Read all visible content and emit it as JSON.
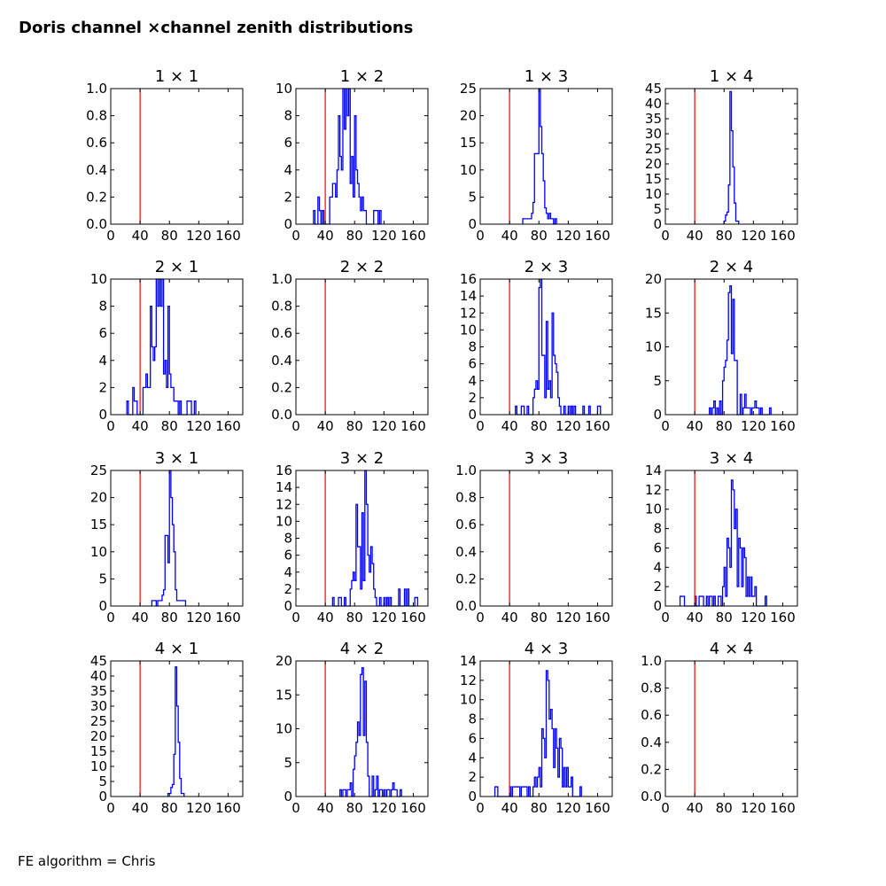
{
  "title": "Doris channel ×channel zenith distributions",
  "footer": "FE algorithm = Chris",
  "colors": {
    "hist": "#0000ff",
    "marker": "#ff0000",
    "axes": "#000000"
  },
  "chart_data": {
    "type": "histogram-grid",
    "xlim": [
      0,
      180
    ],
    "xticks": [
      0,
      40,
      80,
      120,
      160
    ],
    "marker_line_x": 40,
    "bin_width": 2,
    "panels": [
      {
        "title": "1 × 1",
        "ylim": [
          0,
          1
        ],
        "yticks": [
          "0.0",
          "0.2",
          "0.4",
          "0.6",
          "0.8",
          "1.0"
        ],
        "bins": null
      },
      {
        "title": "1 × 2",
        "ylim": [
          0,
          10
        ],
        "yticks": [
          "0",
          "2",
          "4",
          "6",
          "8",
          "10"
        ],
        "bins": {
          "start": 24,
          "counts": [
            1,
            0,
            0,
            2,
            1,
            0,
            1,
            0,
            0,
            0,
            0,
            2,
            2,
            3,
            3,
            2,
            4,
            8,
            5,
            4,
            10,
            7,
            10,
            8,
            10,
            3,
            5,
            2,
            8,
            4,
            3,
            2,
            1,
            2,
            1,
            1,
            0,
            0,
            0,
            0,
            0,
            1,
            1,
            1,
            0,
            1
          ]
        }
      },
      {
        "title": "1 × 3",
        "ylim": [
          0,
          25
        ],
        "yticks": [
          "0",
          "5",
          "10",
          "15",
          "20",
          "25"
        ],
        "bins": {
          "start": 58,
          "counts": [
            1,
            1,
            1,
            1,
            1,
            1,
            2,
            4,
            13,
            13,
            13,
            25,
            18,
            13,
            8,
            3,
            2,
            1,
            2,
            1,
            1,
            0,
            1
          ]
        }
      },
      {
        "title": "1 × 4",
        "ylim": [
          0,
          45
        ],
        "yticks": [
          "0",
          "5",
          "10",
          "15",
          "20",
          "25",
          "30",
          "35",
          "40",
          "45"
        ],
        "bins": {
          "start": 80,
          "counts": [
            1,
            3,
            4,
            13,
            44,
            31,
            19,
            7,
            1,
            1
          ]
        }
      },
      {
        "title": "2 × 1",
        "ylim": [
          0,
          10
        ],
        "yticks": [
          "0",
          "2",
          "4",
          "6",
          "8",
          "10"
        ],
        "bins": {
          "start": 22,
          "counts": [
            1,
            0,
            0,
            0,
            2,
            1,
            1,
            0,
            0,
            0,
            0,
            2,
            2,
            3,
            2,
            2,
            8,
            5,
            4,
            5,
            10,
            8,
            10,
            8,
            10,
            3,
            4,
            2,
            8,
            3,
            2,
            2,
            1,
            1,
            1,
            0,
            1,
            0,
            0,
            0,
            0,
            1,
            1,
            1,
            0,
            0,
            1
          ]
        }
      },
      {
        "title": "2 × 2",
        "ylim": [
          0,
          1
        ],
        "yticks": [
          "0.0",
          "0.2",
          "0.4",
          "0.6",
          "0.8",
          "1.0"
        ],
        "bins": null
      },
      {
        "title": "2 × 3",
        "ylim": [
          0,
          16
        ],
        "yticks": [
          "0",
          "2",
          "4",
          "6",
          "8",
          "10",
          "12",
          "14",
          "16"
        ],
        "bins": {
          "start": 48,
          "counts": [
            1,
            0,
            0,
            0,
            1,
            1,
            0,
            0,
            1,
            0,
            0,
            0,
            2,
            3,
            4,
            3,
            15,
            16,
            7,
            7,
            2,
            11,
            3,
            4,
            2,
            12,
            7,
            6,
            5,
            2,
            1,
            0,
            0,
            1,
            0,
            0,
            1,
            0,
            1,
            0,
            1,
            0,
            0,
            0,
            0,
            0,
            1,
            0,
            0,
            0,
            1,
            0,
            0,
            0,
            0,
            0,
            1,
            1
          ]
        }
      },
      {
        "title": "2 × 4",
        "ylim": [
          0,
          20
        ],
        "yticks": [
          "0",
          "5",
          "10",
          "15",
          "20"
        ],
        "bins": {
          "start": 60,
          "counts": [
            1,
            0,
            1,
            2,
            0,
            1,
            0,
            2,
            0,
            5,
            7,
            8,
            11,
            18,
            19,
            9,
            17,
            8,
            8,
            0,
            0,
            3,
            0,
            1,
            3,
            1,
            1,
            1,
            0,
            1,
            1,
            2,
            1,
            1,
            0,
            1,
            0,
            0,
            0,
            0,
            0,
            1
          ]
        }
      },
      {
        "title": "3 × 1",
        "ylim": [
          0,
          25
        ],
        "yticks": [
          "0",
          "5",
          "10",
          "15",
          "20",
          "25"
        ],
        "bins": {
          "start": 56,
          "counts": [
            1,
            1,
            1,
            0,
            1,
            1,
            1,
            2,
            3,
            13,
            13,
            8,
            25,
            20,
            15,
            10,
            3,
            1,
            1,
            1,
            1,
            1,
            1
          ]
        }
      },
      {
        "title": "3 × 2",
        "ylim": [
          0,
          16
        ],
        "yticks": [
          "0",
          "2",
          "4",
          "6",
          "8",
          "10",
          "12",
          "14",
          "16"
        ],
        "bins": {
          "start": 50,
          "counts": [
            1,
            0,
            0,
            0,
            1,
            1,
            0,
            0,
            1,
            0,
            0,
            0,
            2,
            3,
            4,
            3,
            12,
            7,
            7,
            2,
            11,
            3,
            16,
            12,
            6,
            4,
            7,
            5,
            2,
            1,
            0,
            0,
            1,
            0,
            0,
            1,
            0,
            1,
            0,
            1,
            0,
            0,
            0,
            0,
            0,
            2,
            0,
            0,
            0,
            2,
            0,
            2,
            0,
            0,
            0,
            0,
            1,
            1
          ]
        }
      },
      {
        "title": "3 × 3",
        "ylim": [
          0,
          1
        ],
        "yticks": [
          "0.0",
          "0.2",
          "0.4",
          "0.6",
          "0.8",
          "1.0"
        ],
        "bins": null
      },
      {
        "title": "3 × 4",
        "ylim": [
          0,
          14
        ],
        "yticks": [
          "0",
          "2",
          "4",
          "6",
          "8",
          "10",
          "12",
          "14"
        ],
        "bins": {
          "start": 20,
          "counts": [
            1,
            1,
            1,
            0,
            0,
            0,
            0,
            0,
            0,
            0,
            1,
            0,
            0,
            1,
            1,
            1,
            0,
            0,
            1,
            0,
            1,
            1,
            0,
            1,
            0,
            0,
            1,
            1,
            0,
            2,
            4,
            1,
            7,
            6,
            4,
            13,
            12,
            8,
            10,
            2,
            7,
            6,
            2,
            6,
            5,
            1,
            3,
            1,
            3,
            1,
            1,
            2,
            0,
            0,
            0,
            0,
            0,
            0,
            1
          ]
        }
      },
      {
        "title": "4 × 1",
        "ylim": [
          0,
          45
        ],
        "yticks": [
          "0",
          "5",
          "10",
          "15",
          "20",
          "25",
          "30",
          "35",
          "40",
          "45"
        ],
        "bins": {
          "start": 78,
          "counts": [
            1,
            1,
            3,
            4,
            14,
            43,
            30,
            18,
            6,
            1,
            1
          ]
        }
      },
      {
        "title": "4 × 2",
        "ylim": [
          0,
          20
        ],
        "yticks": [
          "0",
          "5",
          "10",
          "15",
          "20"
        ],
        "bins": {
          "start": 60,
          "counts": [
            1,
            0,
            1,
            1,
            0,
            1,
            1,
            2,
            0,
            4,
            6,
            8,
            11,
            9,
            18,
            19,
            9,
            17,
            8,
            3,
            0,
            0,
            3,
            0,
            1,
            3,
            0,
            1,
            1,
            0,
            1,
            0,
            1,
            1,
            0,
            1,
            2,
            1,
            1,
            0,
            0,
            1
          ]
        }
      },
      {
        "title": "4 × 3",
        "ylim": [
          0,
          14
        ],
        "yticks": [
          "0",
          "2",
          "4",
          "6",
          "8",
          "10",
          "12",
          "14"
        ],
        "bins": {
          "start": 20,
          "counts": [
            1,
            1,
            0,
            0,
            0,
            0,
            0,
            0,
            0,
            0,
            1,
            0,
            1,
            1,
            1,
            1,
            1,
            0,
            1,
            1,
            1,
            1,
            0,
            1,
            0,
            0,
            1,
            2,
            1,
            2,
            3,
            1,
            7,
            6,
            4,
            13,
            12,
            8,
            9,
            7,
            3,
            7,
            5,
            2,
            6,
            5,
            1,
            3,
            1,
            3,
            1,
            1,
            2,
            0,
            0,
            0,
            0,
            0,
            1
          ]
        }
      },
      {
        "title": "4 × 4",
        "ylim": [
          0,
          1
        ],
        "yticks": [
          "0.0",
          "0.2",
          "0.4",
          "0.6",
          "0.8",
          "1.0"
        ],
        "bins": null
      }
    ]
  }
}
